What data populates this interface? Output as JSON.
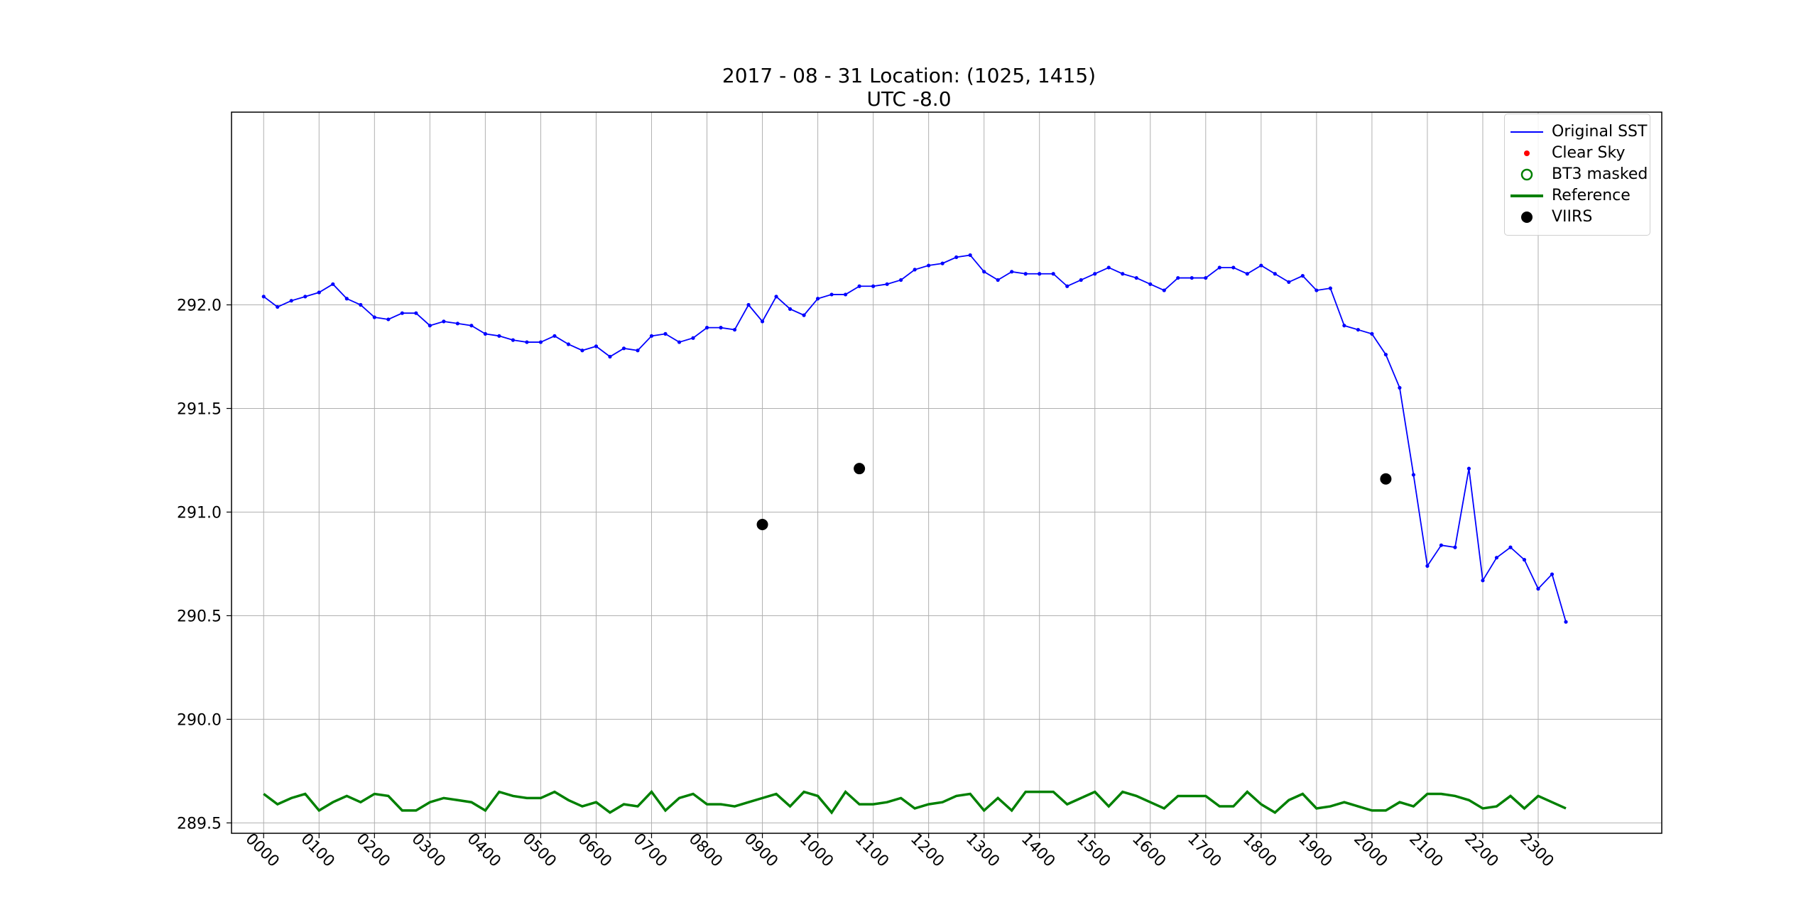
{
  "title": {
    "line1": "2017 - 08 - 31   Location: (1025, 1415)",
    "line2": "UTC -8.0"
  },
  "legend": {
    "items": [
      {
        "label": "Original SST",
        "color": "#0000ff",
        "marker": "line-dot"
      },
      {
        "label": "Clear Sky",
        "color": "#ff0000",
        "marker": "dot"
      },
      {
        "label": "BT3 masked",
        "color": "#008000",
        "marker": "open-circle"
      },
      {
        "label": "Reference",
        "color": "#008000",
        "marker": "thick-line"
      },
      {
        "label": "VIIRS",
        "color": "#000000",
        "marker": "big-dot"
      }
    ]
  },
  "chart_data": {
    "type": "line",
    "title": "2017 - 08 - 31   Location: (1025, 1415)\nUTC -8.0",
    "xlabel": "",
    "ylabel": "",
    "xlim": [
      -0.58,
      25.23
    ],
    "ylim": [
      289.45,
      292.93
    ],
    "grid": true,
    "legend_position": "upper right",
    "x_ticks": [
      "0000",
      "0100",
      "0200",
      "0300",
      "0400",
      "0500",
      "0600",
      "0700",
      "0800",
      "0900",
      "1000",
      "1100",
      "1200",
      "1300",
      "1400",
      "1500",
      "1600",
      "1700",
      "1800",
      "1900",
      "2000",
      "2100",
      "2200",
      "2300"
    ],
    "y_ticks": [
      289.5,
      290.0,
      290.5,
      291.0,
      291.5,
      292.0
    ],
    "series": [
      {
        "name": "Original SST",
        "color": "#0000ff",
        "x_step_hours": 0.25,
        "values": [
          292.04,
          291.99,
          292.02,
          292.04,
          292.06,
          292.1,
          292.03,
          292.0,
          291.94,
          291.93,
          291.96,
          291.96,
          291.9,
          291.92,
          291.91,
          291.9,
          291.86,
          291.85,
          291.83,
          291.82,
          291.82,
          291.85,
          291.81,
          291.78,
          291.8,
          291.75,
          291.79,
          291.78,
          291.85,
          291.86,
          291.82,
          291.84,
          291.89,
          291.89,
          291.88,
          292.0,
          291.92,
          292.04,
          291.98,
          291.95,
          292.03,
          292.05,
          292.05,
          292.09,
          292.09,
          292.1,
          292.12,
          292.17,
          292.19,
          292.2,
          292.23,
          292.24,
          292.16,
          292.12,
          292.16,
          292.15,
          292.15,
          292.15,
          292.09,
          292.12,
          292.15,
          292.18,
          292.15,
          292.13,
          292.1,
          292.07,
          292.13,
          292.13,
          292.13,
          292.18,
          292.18,
          292.15,
          292.19,
          292.15,
          292.11,
          292.14,
          292.07,
          292.08,
          291.9,
          291.88,
          291.86,
          291.76,
          291.6,
          291.18,
          290.74,
          290.84,
          290.83,
          291.21,
          290.67,
          290.78,
          290.83,
          290.77,
          290.63,
          290.7,
          290.47
        ]
      },
      {
        "name": "Reference",
        "color": "#008000",
        "x_step_hours": 0.25,
        "values": [
          289.64,
          289.59,
          289.62,
          289.64,
          289.56,
          289.6,
          289.63,
          289.6,
          289.64,
          289.63,
          289.56,
          289.56,
          289.6,
          289.62,
          289.61,
          289.6,
          289.56,
          289.65,
          289.63,
          289.62,
          289.62,
          289.65,
          289.61,
          289.58,
          289.6,
          289.55,
          289.59,
          289.58,
          289.65,
          289.56,
          289.62,
          289.64,
          289.59,
          289.59,
          289.58,
          289.6,
          289.62,
          289.64,
          289.58,
          289.65,
          289.63,
          289.55,
          289.65,
          289.59,
          289.59,
          289.6,
          289.62,
          289.57,
          289.59,
          289.6,
          289.63,
          289.64,
          289.56,
          289.62,
          289.56,
          289.65,
          289.65,
          289.65,
          289.59,
          289.62,
          289.65,
          289.58,
          289.65,
          289.63,
          289.6,
          289.57,
          289.63,
          289.63,
          289.63,
          289.58,
          289.58,
          289.65,
          289.59,
          289.55,
          289.61,
          289.64,
          289.57,
          289.58,
          289.6,
          289.58,
          289.56,
          289.56,
          289.6,
          289.58,
          289.64,
          289.64,
          289.63,
          289.61,
          289.57,
          289.58,
          289.63,
          289.57,
          289.63,
          289.6,
          289.57
        ]
      },
      {
        "name": "VIIRS",
        "color": "#000000",
        "points": [
          {
            "x": 9.0,
            "y": 290.94
          },
          {
            "x": 10.75,
            "y": 291.21
          },
          {
            "x": 20.25,
            "y": 291.16
          }
        ]
      }
    ]
  }
}
